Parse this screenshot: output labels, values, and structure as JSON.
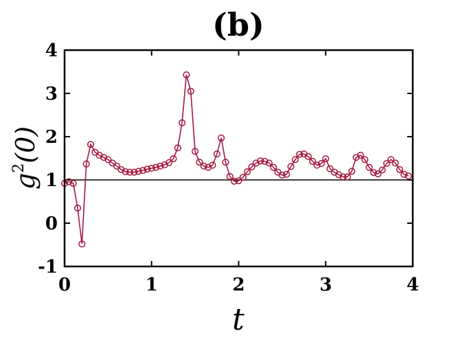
{
  "chart_data": {
    "type": "line",
    "title": "(b)",
    "xlabel": "t",
    "ylabel": {
      "base": "g",
      "sup": "2",
      "arg": "(0)"
    },
    "xlim": [
      0,
      4
    ],
    "ylim": [
      -1,
      4
    ],
    "xticks": [
      0,
      1,
      2,
      3,
      4
    ],
    "yticks": [
      -1,
      0,
      1,
      2,
      3,
      4
    ],
    "xtick_labels": [
      "0",
      "1",
      "2",
      "3",
      "4"
    ],
    "ytick_labels": [
      "-1",
      "0",
      "1",
      "2",
      "3",
      "4"
    ],
    "grid": false,
    "reference_line": {
      "y": 1,
      "color": "#000000"
    },
    "series_color": "#a3173c",
    "marker": "open-circle",
    "series": [
      {
        "x": [
          0.0,
          0.05,
          0.1,
          0.15,
          0.2,
          0.25,
          0.3,
          0.35,
          0.4,
          0.45,
          0.5,
          0.55,
          0.6,
          0.65,
          0.7,
          0.75,
          0.8,
          0.85,
          0.9,
          0.95,
          1.0,
          1.05,
          1.1,
          1.15,
          1.2,
          1.25,
          1.3,
          1.35,
          1.4,
          1.45,
          1.5,
          1.55,
          1.6,
          1.65,
          1.7,
          1.75,
          1.8,
          1.85,
          1.9,
          1.95,
          2.0,
          2.05,
          2.1,
          2.15,
          2.2,
          2.25,
          2.3,
          2.35,
          2.4,
          2.45,
          2.5,
          2.55,
          2.6,
          2.65,
          2.7,
          2.75,
          2.8,
          2.85,
          2.9,
          2.95,
          3.0,
          3.05,
          3.1,
          3.15,
          3.2,
          3.25,
          3.3,
          3.35,
          3.4,
          3.45,
          3.5,
          3.55,
          3.6,
          3.65,
          3.7,
          3.75,
          3.8,
          3.85,
          3.9,
          3.95
        ],
        "values": [
          0.92,
          0.96,
          0.92,
          0.35,
          -0.48,
          1.37,
          1.82,
          1.64,
          1.57,
          1.52,
          1.47,
          1.39,
          1.32,
          1.24,
          1.19,
          1.18,
          1.18,
          1.2,
          1.22,
          1.25,
          1.27,
          1.29,
          1.32,
          1.35,
          1.4,
          1.49,
          1.74,
          2.32,
          3.43,
          3.05,
          1.66,
          1.41,
          1.32,
          1.29,
          1.34,
          1.6,
          1.97,
          1.41,
          1.08,
          0.97,
          0.98,
          1.06,
          1.19,
          1.3,
          1.39,
          1.44,
          1.43,
          1.39,
          1.29,
          1.18,
          1.11,
          1.13,
          1.31,
          1.47,
          1.59,
          1.6,
          1.54,
          1.43,
          1.34,
          1.38,
          1.49,
          1.26,
          1.18,
          1.12,
          1.07,
          1.07,
          1.2,
          1.52,
          1.57,
          1.47,
          1.29,
          1.17,
          1.14,
          1.23,
          1.38,
          1.47,
          1.39,
          1.24,
          1.13,
          1.09
        ]
      }
    ]
  }
}
